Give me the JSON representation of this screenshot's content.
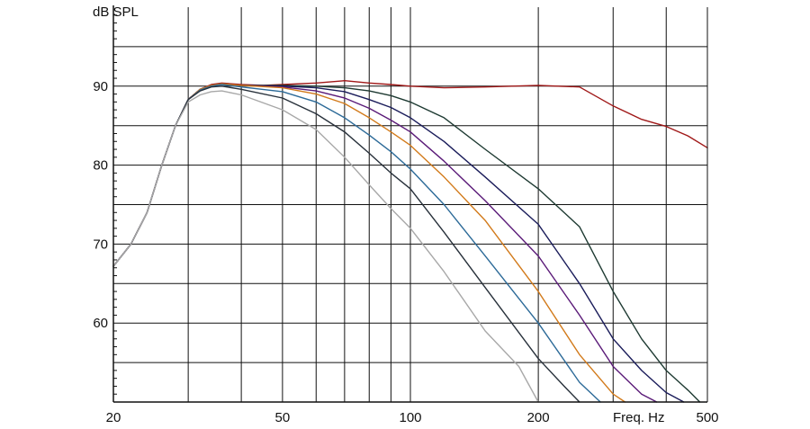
{
  "chart_data": {
    "type": "line",
    "title": "",
    "ylabel": "dB SPL",
    "xlabel": "Freq. Hz",
    "x_scale": "log",
    "xlim": [
      20,
      500
    ],
    "ylim": [
      50,
      100
    ],
    "x_ticks": [
      20,
      50,
      100,
      200,
      500
    ],
    "x_tick_labels": [
      "20",
      "50",
      "100",
      "200",
      "500"
    ],
    "x_minor_grid": [
      30,
      40,
      60,
      70,
      80,
      90,
      300,
      400
    ],
    "y_ticks": [
      60,
      70,
      80,
      90
    ],
    "y_tick_labels": [
      "60",
      "70",
      "80",
      "90"
    ],
    "y_minor_grid": [
      55,
      65,
      75,
      85,
      95
    ],
    "grid": true,
    "legend": "none",
    "series": [
      {
        "color": "#a01818",
        "x": [
          20,
          22,
          24,
          26,
          28,
          30,
          32,
          34,
          36,
          40,
          45,
          50,
          60,
          70,
          80,
          90,
          100,
          120,
          150,
          200,
          250,
          300,
          350,
          400,
          450,
          500
        ],
        "y": [
          67.2,
          70,
          74,
          80,
          85,
          88.3,
          89.6,
          90.2,
          90.4,
          90.2,
          90.1,
          90.2,
          90.4,
          90.7,
          90.4,
          90.2,
          90.0,
          89.8,
          89.9,
          90.1,
          89.9,
          87.5,
          85.8,
          84.9,
          83.7,
          82.2
        ]
      },
      {
        "color": "#1e3a32",
        "x": [
          20,
          22,
          24,
          26,
          28,
          30,
          32,
          34,
          36,
          40,
          50,
          60,
          70,
          80,
          90,
          100,
          120,
          150,
          200,
          250,
          300,
          350,
          400,
          450,
          480
        ],
        "y": [
          67.2,
          70,
          74,
          80,
          85,
          88.3,
          89.6,
          90.1,
          90.3,
          90.1,
          90.1,
          90.0,
          89.8,
          89.4,
          88.8,
          88.0,
          86.0,
          82.0,
          77.0,
          72.2,
          64.0,
          58.0,
          54.0,
          51.5,
          50.0
        ]
      },
      {
        "color": "#1a1c5a",
        "x": [
          20,
          22,
          24,
          26,
          28,
          30,
          32,
          34,
          36,
          40,
          50,
          60,
          70,
          80,
          90,
          100,
          120,
          150,
          200,
          250,
          300,
          350,
          400,
          440
        ],
        "y": [
          67.2,
          70,
          74,
          80,
          85,
          88.3,
          89.6,
          90.1,
          90.3,
          90.1,
          90.0,
          89.8,
          89.3,
          88.3,
          87.3,
          86.0,
          83.0,
          78.5,
          72.5,
          65.0,
          58.0,
          54.0,
          51.2,
          50.0
        ]
      },
      {
        "color": "#5a1a78",
        "x": [
          20,
          22,
          24,
          26,
          28,
          30,
          32,
          34,
          36,
          40,
          50,
          60,
          70,
          80,
          90,
          100,
          120,
          150,
          200,
          250,
          300,
          350,
          380
        ],
        "y": [
          67.2,
          70,
          74,
          80,
          85,
          88.3,
          89.6,
          90.1,
          90.3,
          90.1,
          89.9,
          89.4,
          88.5,
          87.2,
          85.7,
          84.2,
          80.5,
          75.5,
          68.5,
          61.0,
          54.5,
          51.0,
          50.0
        ]
      },
      {
        "color": "#d27a1a",
        "x": [
          20,
          22,
          24,
          26,
          28,
          30,
          32,
          34,
          36,
          40,
          50,
          60,
          70,
          80,
          90,
          100,
          120,
          150,
          200,
          250,
          300,
          320
        ],
        "y": [
          67.2,
          70,
          74,
          80,
          85,
          88.3,
          89.6,
          90.1,
          90.3,
          90.1,
          89.8,
          89.0,
          87.8,
          86.0,
          84.2,
          82.5,
          78.5,
          73.0,
          64.0,
          56.0,
          51.0,
          50.0
        ]
      },
      {
        "color": "#2c6a98",
        "x": [
          20,
          22,
          24,
          26,
          28,
          30,
          32,
          34,
          36,
          40,
          50,
          60,
          70,
          80,
          90,
          100,
          120,
          150,
          200,
          250,
          280
        ],
        "y": [
          67.2,
          70,
          74,
          80,
          85,
          88.3,
          89.5,
          90.0,
          90.2,
          89.9,
          89.3,
          88.0,
          86.0,
          83.8,
          81.7,
          79.5,
          75.0,
          68.5,
          60.0,
          52.5,
          50.0
        ]
      },
      {
        "color": "#27303a",
        "x": [
          20,
          22,
          24,
          26,
          28,
          30,
          32,
          34,
          36,
          40,
          50,
          60,
          70,
          80,
          90,
          100,
          120,
          150,
          200,
          230,
          250
        ],
        "y": [
          67.2,
          70,
          74,
          80,
          85,
          88.3,
          89.4,
          89.9,
          90.0,
          89.6,
          88.5,
          86.5,
          84.2,
          81.5,
          79.0,
          77.0,
          71.5,
          64.5,
          55.5,
          52.0,
          50.0
        ]
      },
      {
        "color": "#a8a8a8",
        "x": [
          20,
          22,
          24,
          26,
          28,
          30,
          32,
          34,
          36,
          40,
          50,
          60,
          70,
          80,
          90,
          100,
          120,
          150,
          180,
          200
        ],
        "y": [
          67.2,
          70,
          74,
          80,
          85,
          88.0,
          88.9,
          89.3,
          89.4,
          88.9,
          87.0,
          84.5,
          81.0,
          77.5,
          74.5,
          72.0,
          66.5,
          59.0,
          54.5,
          50.0
        ]
      }
    ]
  }
}
